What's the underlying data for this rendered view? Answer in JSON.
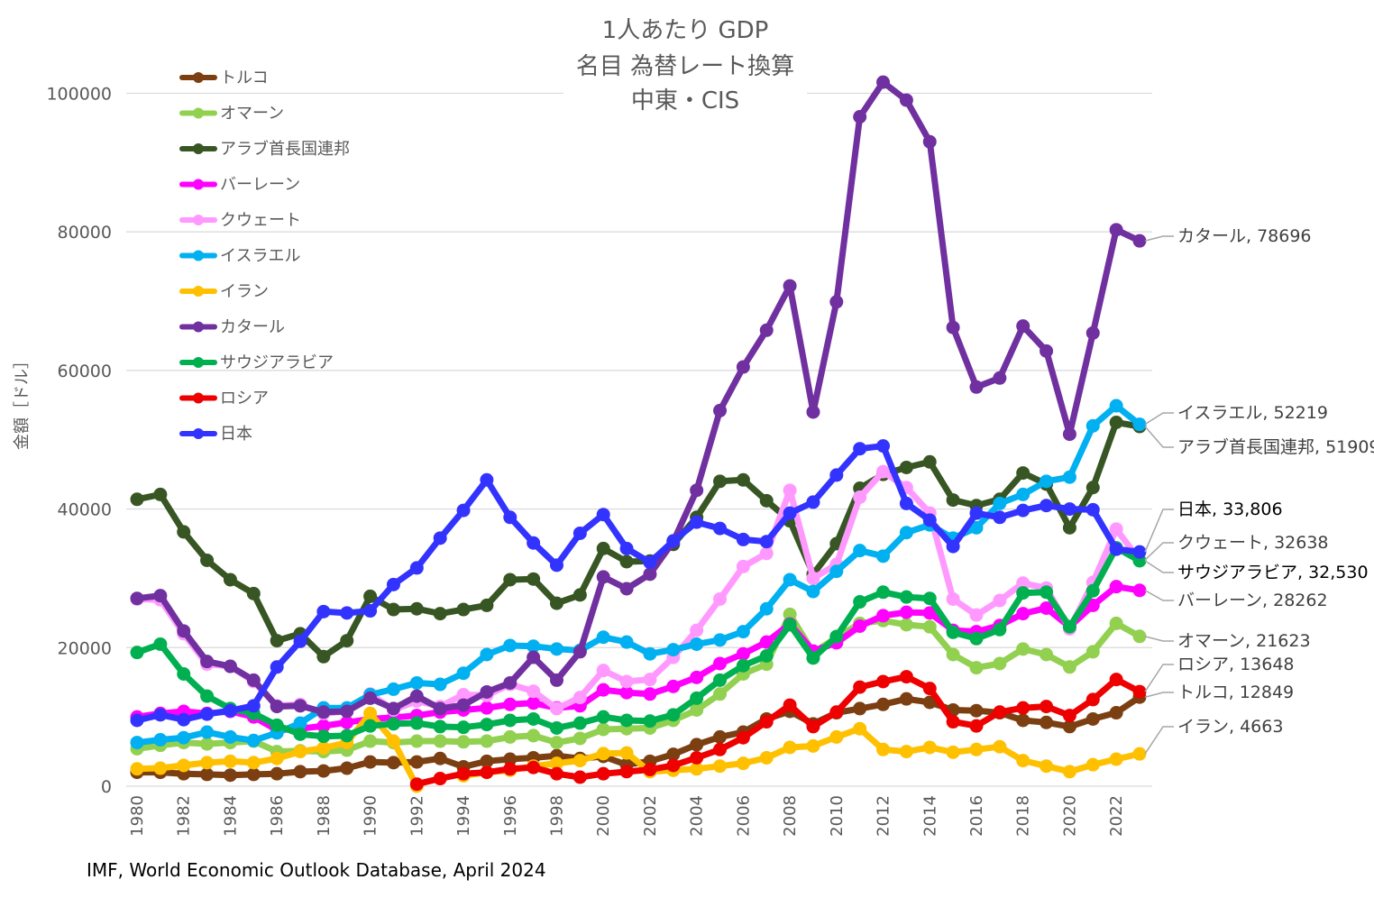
{
  "chart_data": {
    "type": "line",
    "title": [
      "1人あたり GDP",
      "名目 為替レート換算",
      "中東・CIS"
    ],
    "ylabel": "金額［ドル］",
    "xlabel": "",
    "ylim": [
      0,
      105000
    ],
    "yticks": [
      0,
      20000,
      40000,
      60000,
      80000,
      100000
    ],
    "xlim": [
      1980,
      2023
    ],
    "xticks": [
      1980,
      1982,
      1984,
      1986,
      1988,
      1990,
      1992,
      1994,
      1996,
      1998,
      2000,
      2002,
      2004,
      2006,
      2008,
      2010,
      2012,
      2014,
      2016,
      2018,
      2020,
      2022
    ],
    "grid": "horizontal",
    "legend_position": "top-left",
    "source": "IMF, World Economic Outlook Database, April 2024",
    "series": [
      {
        "name": "トルコ",
        "color": "#7B3F12",
        "start": 1980,
        "values": [
          2000,
          2000,
          1800,
          1700,
          1600,
          1700,
          1800,
          2100,
          2200,
          2600,
          3500,
          3400,
          3500,
          4000,
          2800,
          3600,
          3900,
          4100,
          4400,
          4000,
          4300,
          3100,
          3600,
          4600,
          6000,
          7100,
          7800,
          9700,
          10800,
          9000,
          10600,
          11200,
          11800,
          12600,
          12100,
          11000,
          10900,
          10600,
          9500,
          9200,
          8600,
          9700,
          10600,
          12849
        ]
      },
      {
        "name": "オマーン",
        "color": "#92D050",
        "start": 1980,
        "values": [
          5400,
          5900,
          6300,
          6100,
          6300,
          6500,
          5000,
          5100,
          5000,
          5200,
          6500,
          6300,
          6500,
          6500,
          6400,
          6500,
          7100,
          7300,
          6300,
          6900,
          8200,
          8300,
          8400,
          9500,
          11000,
          13300,
          16200,
          17600,
          24800,
          19300,
          21400,
          23500,
          23900,
          23300,
          23000,
          19000,
          17100,
          17700,
          19800,
          19000,
          17200,
          19400,
          23500,
          21623
        ]
      },
      {
        "name": "アラブ首長国連邦",
        "color": "#375623",
        "start": 1980,
        "values": [
          41400,
          42100,
          36700,
          32600,
          29800,
          27800,
          21000,
          22000,
          18700,
          21000,
          27400,
          25500,
          25600,
          24900,
          25500,
          26100,
          29800,
          29900,
          26400,
          27600,
          34300,
          32400,
          32500,
          34900,
          38800,
          44000,
          44200,
          41200,
          38300,
          30600,
          35000,
          43000,
          45000,
          46000,
          46800,
          41300,
          40500,
          41400,
          45200,
          43600,
          37300,
          43100,
          52500,
          51909
        ]
      },
      {
        "name": "バーレーン",
        "color": "#FF00FF",
        "start": 1980,
        "values": [
          10000,
          10500,
          10800,
          10500,
          10800,
          10000,
          8100,
          8300,
          8700,
          9200,
          9700,
          9900,
          10200,
          10700,
          11000,
          11300,
          11800,
          12000,
          11300,
          11600,
          13900,
          13500,
          13300,
          14400,
          15700,
          17700,
          19100,
          20800,
          23400,
          19500,
          20700,
          23100,
          24600,
          25100,
          25000,
          22500,
          22300,
          23200,
          24900,
          25700,
          23000,
          26100,
          28800,
          28262
        ]
      },
      {
        "name": "クウェート",
        "color": "#FF99FF",
        "start": 1980,
        "values": [
          27000,
          26900,
          22000,
          17600,
          17300,
          15100,
          11600,
          11800,
          10500,
          10800,
          13300,
          11000,
          12300,
          11500,
          13200,
          13100,
          14700,
          13700,
          11200,
          12800,
          16700,
          15100,
          15400,
          18600,
          22500,
          27000,
          31700,
          33600,
          42700,
          30000,
          32000,
          41700,
          45400,
          43100,
          39400,
          27000,
          24700,
          26800,
          29300,
          28600,
          22700,
          29400,
          37100,
          32638
        ]
      },
      {
        "name": "イスラエル",
        "color": "#00B0F0",
        "start": 1980,
        "values": [
          6300,
          6700,
          7000,
          7800,
          7100,
          6600,
          7700,
          9100,
          11300,
          11300,
          13200,
          14000,
          14900,
          14700,
          16300,
          19000,
          20300,
          20200,
          19800,
          19600,
          21500,
          20800,
          19100,
          19700,
          20500,
          21100,
          22300,
          25600,
          29800,
          28100,
          31000,
          34000,
          33200,
          36600,
          37700,
          35800,
          37300,
          40800,
          42100,
          44000,
          44600,
          52000,
          54900,
          52219
        ]
      },
      {
        "name": "イラン",
        "color": "#FFC000",
        "start": 1980,
        "values": [
          2500,
          2600,
          3000,
          3400,
          3600,
          3400,
          4000,
          5000,
          5500,
          6300,
          10500,
          6500,
          0,
          null,
          1500,
          2000,
          2300,
          2900,
          3300,
          3700,
          4700,
          4800,
          2100,
          2300,
          2500,
          2900,
          3300,
          4100,
          5600,
          5800,
          7100,
          8300,
          5300,
          5000,
          5600,
          4900,
          5300,
          5700,
          3700,
          2900,
          2100,
          3100,
          3900,
          4663
        ]
      },
      {
        "name": "カタール",
        "color": "#7030A0",
        "start": 1980,
        "values": [
          27100,
          27500,
          22400,
          18000,
          17300,
          15300,
          11500,
          11600,
          10700,
          10800,
          12700,
          11200,
          13000,
          11200,
          11700,
          13600,
          14900,
          18600,
          15300,
          19400,
          30200,
          28500,
          30600,
          35300,
          42700,
          54200,
          60500,
          65800,
          72200,
          54000,
          69900,
          96600,
          101600,
          99000,
          93000,
          66200,
          57600,
          58900,
          66400,
          62800,
          50800,
          65400,
          80300,
          78696
        ]
      },
      {
        "name": "サウジアラビア",
        "color": "#00B050",
        "start": 1980,
        "values": [
          19300,
          20500,
          16200,
          13000,
          11200,
          10500,
          8800,
          7500,
          7200,
          7300,
          8700,
          9000,
          9100,
          8600,
          8500,
          8900,
          9500,
          9700,
          8400,
          9100,
          10000,
          9500,
          9400,
          10300,
          12700,
          15300,
          17400,
          18800,
          23300,
          18500,
          21600,
          26600,
          28000,
          27300,
          27100,
          22200,
          21300,
          22600,
          27900,
          28000,
          23000,
          28200,
          34400,
          32530
        ]
      },
      {
        "name": "ロシア",
        "color": "#EE0000",
        "start": 1980,
        "values": [
          null,
          null,
          null,
          null,
          null,
          null,
          null,
          null,
          null,
          null,
          null,
          null,
          300,
          1100,
          1800,
          2000,
          2500,
          2700,
          1800,
          1300,
          1800,
          2100,
          2400,
          3000,
          4100,
          5300,
          7000,
          9300,
          11700,
          8600,
          10700,
          14300,
          15100,
          15800,
          14100,
          9300,
          8700,
          10700,
          11300,
          11500,
          10200,
          12500,
          15400,
          13648
        ]
      },
      {
        "name": "日本",
        "color": "#3333FF",
        "start": 1980,
        "values": [
          9500,
          10300,
          9600,
          10400,
          10900,
          11600,
          17200,
          20900,
          25200,
          25000,
          25300,
          29100,
          31500,
          35800,
          39800,
          44200,
          38800,
          35100,
          31900,
          36500,
          39200,
          34300,
          32300,
          35400,
          38100,
          37200,
          35600,
          35300,
          39400,
          41000,
          44900,
          48700,
          49100,
          40800,
          38400,
          34600,
          39400,
          38800,
          39800,
          40500,
          40000,
          39900,
          34200,
          33806
        ]
      }
    ],
    "annotations": [
      {
        "series": "カタール",
        "text": "カタール, 78696"
      },
      {
        "series": "イスラエル",
        "text": "イスラエル, 52219"
      },
      {
        "series": "アラブ首長国連邦",
        "text": "アラブ首長国連邦, 51909"
      },
      {
        "series": "日本",
        "text": "日本, 33,806"
      },
      {
        "series": "クウェート",
        "text": "クウェート, 32638"
      },
      {
        "series": "サウジアラビア",
        "text": "サウジアラビア, 32,530"
      },
      {
        "series": "バーレーン",
        "text": "バーレーン, 28262"
      },
      {
        "series": "オマーン",
        "text": "オマーン, 21623"
      },
      {
        "series": "ロシア",
        "text": "ロシア, 13648"
      },
      {
        "series": "トルコ",
        "text": "トルコ, 12849"
      },
      {
        "series": "イラン",
        "text": "イラン, 4663"
      }
    ]
  }
}
